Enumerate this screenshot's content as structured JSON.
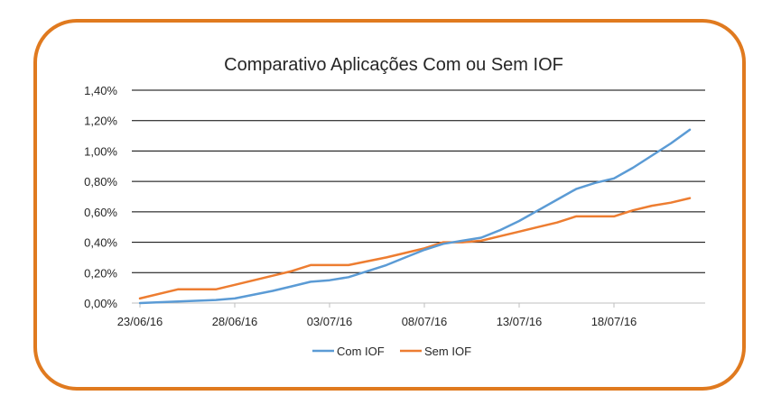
{
  "chart_data": {
    "type": "line",
    "title": "Comparativo Aplicações Com ou Sem IOF",
    "xlabel": "",
    "ylabel": "",
    "x_ticks": [
      "23/06/16",
      "28/06/16",
      "03/07/16",
      "08/07/16",
      "13/07/16",
      "18/07/16"
    ],
    "y_ticks": [
      "0,00%",
      "0,20%",
      "0,40%",
      "0,60%",
      "0,80%",
      "1,00%",
      "1,20%",
      "1,40%"
    ],
    "ylim": [
      0,
      1.4
    ],
    "x_range": [
      "23/06/16",
      "23/07/16"
    ],
    "grid": true,
    "legend_position": "bottom",
    "series": [
      {
        "name": "Com IOF",
        "color": "#5B9BD5",
        "points": [
          [
            "23/06/16",
            0.0
          ],
          [
            "25/06/16",
            0.01
          ],
          [
            "27/06/16",
            0.02
          ],
          [
            "28/06/16",
            0.03
          ],
          [
            "30/06/16",
            0.08
          ],
          [
            "01/07/16",
            0.11
          ],
          [
            "02/07/16",
            0.14
          ],
          [
            "03/07/16",
            0.15
          ],
          [
            "04/07/16",
            0.17
          ],
          [
            "06/07/16",
            0.25
          ],
          [
            "07/07/16",
            0.3
          ],
          [
            "08/07/16",
            0.35
          ],
          [
            "09/07/16",
            0.39
          ],
          [
            "10/07/16",
            0.41
          ],
          [
            "11/07/16",
            0.43
          ],
          [
            "12/07/16",
            0.48
          ],
          [
            "13/07/16",
            0.54
          ],
          [
            "14/07/16",
            0.61
          ],
          [
            "15/07/16",
            0.68
          ],
          [
            "16/07/16",
            0.75
          ],
          [
            "17/07/16",
            0.79
          ],
          [
            "18/07/16",
            0.82
          ],
          [
            "19/07/16",
            0.89
          ],
          [
            "20/07/16",
            0.97
          ],
          [
            "21/07/16",
            1.05
          ],
          [
            "22/07/16",
            1.14
          ]
        ]
      },
      {
        "name": "Sem IOF",
        "color": "#ED7D31",
        "points": [
          [
            "23/06/16",
            0.03
          ],
          [
            "25/06/16",
            0.09
          ],
          [
            "27/06/16",
            0.09
          ],
          [
            "28/06/16",
            0.12
          ],
          [
            "30/06/16",
            0.18
          ],
          [
            "01/07/16",
            0.21
          ],
          [
            "02/07/16",
            0.25
          ],
          [
            "03/07/16",
            0.25
          ],
          [
            "04/07/16",
            0.25
          ],
          [
            "06/07/16",
            0.3
          ],
          [
            "07/07/16",
            0.33
          ],
          [
            "08/07/16",
            0.36
          ],
          [
            "09/07/16",
            0.4
          ],
          [
            "10/07/16",
            0.4
          ],
          [
            "11/07/16",
            0.41
          ],
          [
            "12/07/16",
            0.44
          ],
          [
            "13/07/16",
            0.47
          ],
          [
            "14/07/16",
            0.5
          ],
          [
            "15/07/16",
            0.53
          ],
          [
            "16/07/16",
            0.57
          ],
          [
            "17/07/16",
            0.57
          ],
          [
            "18/07/16",
            0.57
          ],
          [
            "19/07/16",
            0.61
          ],
          [
            "20/07/16",
            0.64
          ],
          [
            "21/07/16",
            0.66
          ],
          [
            "22/07/16",
            0.69
          ]
        ]
      }
    ]
  }
}
